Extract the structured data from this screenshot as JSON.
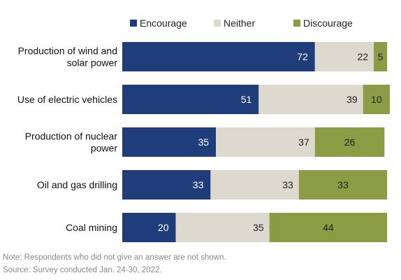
{
  "chart_data": {
    "type": "bar",
    "orientation": "horizontal",
    "stacked": true,
    "title": "",
    "xlabel": "",
    "ylabel": "",
    "xlim": [
      0,
      100
    ],
    "categories": [
      [
        "Production of wind and",
        "solar power"
      ],
      [
        "Use of electric vehicles"
      ],
      [
        "Production of nuclear",
        "power"
      ],
      [
        "Oil and gas drilling"
      ],
      [
        "Coal mining"
      ]
    ],
    "series": [
      {
        "name": "Encourage",
        "color": "#1f3d7a",
        "label_color": "#ffffff",
        "values": [
          72,
          51,
          35,
          33,
          20
        ]
      },
      {
        "name": "Neither",
        "color": "#ddd9ce",
        "label_color": "#222222",
        "values": [
          22,
          39,
          37,
          33,
          35
        ]
      },
      {
        "name": "Discourage",
        "color": "#8c9c45",
        "label_color": "#222222",
        "values": [
          5,
          10,
          26,
          33,
          44
        ]
      }
    ],
    "legend": {
      "position": "top"
    },
    "grid": false
  },
  "footer": {
    "note": "Note: Respondents who did not give an answer are not shown.",
    "source": "Source: Survey conducted Jan. 24-30, 2022."
  }
}
